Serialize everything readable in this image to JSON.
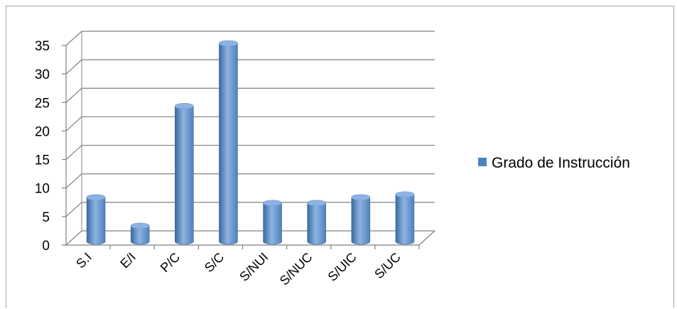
{
  "chart_data": {
    "type": "bar",
    "categories": [
      "S.I",
      "E/I",
      "P/C",
      "S/C",
      "S/NUI",
      "S/NUC",
      "S/UIC",
      "S/UC"
    ],
    "series": [
      {
        "name": "Grado de Instrucción",
        "values": [
          8,
          3,
          24,
          35,
          7,
          7,
          8,
          8.5
        ]
      }
    ],
    "y_ticks": [
      "0",
      "5",
      "10",
      "15",
      "20",
      "25",
      "30",
      "35"
    ],
    "ylim": [
      0,
      35
    ],
    "grid": true,
    "legend_position": "right",
    "bar_color": "#4f81bd",
    "bar_color_light": "#8db3e2",
    "bar_color_dark": "#3a6a9e"
  }
}
